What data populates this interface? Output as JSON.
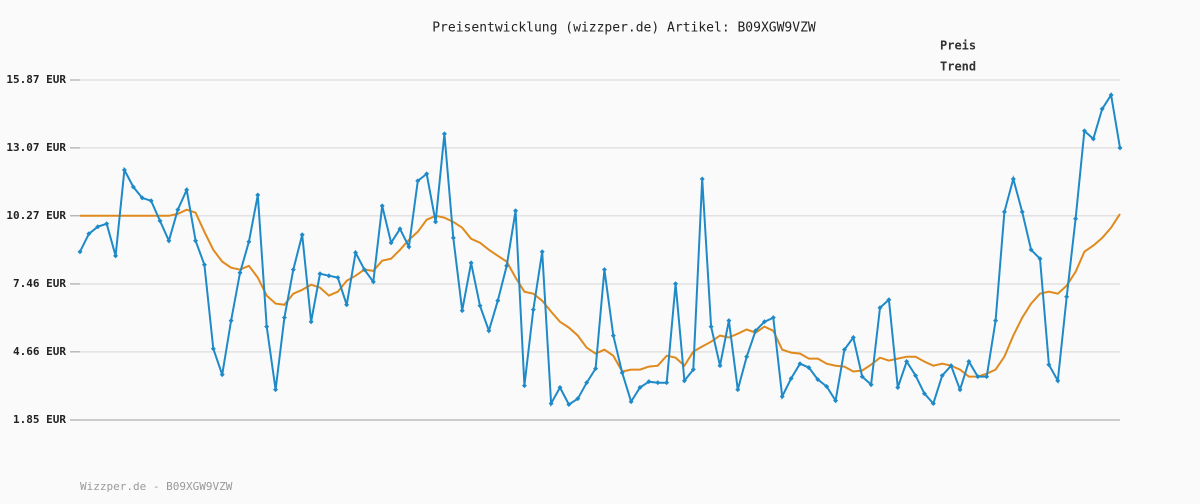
{
  "chart_data": {
    "type": "line",
    "title": "Preisentwicklung (wizzper.de) Artikel: B09XGW9VZW",
    "footer": "Wizzper.de - B09XGW9VZW",
    "ylim": [
      1.85,
      15.87
    ],
    "yticks": [
      {
        "value": 1.85,
        "label": "1.85 EUR"
      },
      {
        "value": 4.66,
        "label": "4.66 EUR"
      },
      {
        "value": 7.46,
        "label": "7.46 EUR"
      },
      {
        "value": 10.27,
        "label": "10.27 EUR"
      },
      {
        "value": 13.07,
        "label": "13.07 EUR"
      },
      {
        "value": 15.87,
        "label": "15.87 EUR"
      }
    ],
    "grid": true,
    "legend": "top-right",
    "series": [
      {
        "name": "Preis",
        "color": "#1f8ac8",
        "markers": true,
        "values": [
          8.79,
          9.53,
          9.82,
          9.94,
          8.62,
          12.16,
          11.46,
          11.01,
          10.89,
          10.06,
          9.24,
          10.52,
          11.34,
          9.24,
          8.25,
          4.79,
          3.72,
          5.95,
          7.92,
          9.2,
          11.13,
          5.7,
          3.1,
          6.07,
          8.05,
          9.49,
          5.9,
          7.88,
          7.8,
          7.72,
          6.6,
          8.75,
          8.05,
          7.55,
          10.68,
          9.16,
          9.73,
          8.99,
          11.71,
          12.0,
          10.02,
          13.65,
          9.36,
          6.36,
          8.33,
          6.56,
          5.53,
          6.77,
          8.21,
          10.48,
          3.27,
          6.4,
          8.79,
          2.53,
          3.19,
          2.49,
          2.73,
          3.39,
          3.97,
          8.05,
          5.33,
          3.8,
          2.61,
          3.19,
          3.43,
          3.39,
          3.39,
          7.47,
          3.47,
          3.93,
          11.79,
          5.7,
          4.09,
          5.95,
          3.1,
          4.46,
          5.53,
          5.9,
          6.07,
          2.82,
          3.56,
          4.17,
          4.01,
          3.52,
          3.23,
          2.65,
          4.75,
          5.25,
          3.64,
          3.31,
          6.48,
          6.81,
          3.19,
          4.26,
          3.68,
          2.94,
          2.53,
          3.68,
          4.09,
          3.1,
          4.26,
          3.64,
          3.64,
          5.95,
          10.43,
          11.79,
          10.43,
          8.87,
          8.5,
          4.13,
          3.47,
          6.93,
          10.15,
          13.77,
          13.44,
          14.68,
          15.25,
          13.07
        ]
      },
      {
        "name": "Trend",
        "color": "#e08a1e",
        "markers": false,
        "values": [
          10.27,
          10.27,
          10.27,
          10.27,
          10.27,
          10.27,
          10.27,
          10.27,
          10.27,
          10.27,
          10.27,
          10.35,
          10.52,
          10.4,
          9.61,
          8.87,
          8.38,
          8.13,
          8.05,
          8.21,
          7.72,
          6.98,
          6.65,
          6.6,
          7.06,
          7.22,
          7.43,
          7.31,
          6.98,
          7.14,
          7.59,
          7.8,
          8.05,
          8.0,
          8.42,
          8.5,
          8.87,
          9.28,
          9.61,
          10.11,
          10.27,
          10.19,
          10.02,
          9.78,
          9.32,
          9.16,
          8.87,
          8.62,
          8.38,
          7.72,
          7.14,
          7.06,
          6.77,
          6.32,
          5.9,
          5.66,
          5.33,
          4.83,
          4.59,
          4.75,
          4.5,
          3.85,
          3.93,
          3.93,
          4.05,
          4.09,
          4.5,
          4.42,
          4.09,
          4.67,
          4.88,
          5.08,
          5.33,
          5.25,
          5.41,
          5.58,
          5.45,
          5.7,
          5.53,
          4.75,
          4.63,
          4.59,
          4.38,
          4.38,
          4.17,
          4.09,
          4.05,
          3.85,
          3.89,
          4.13,
          4.42,
          4.3,
          4.38,
          4.46,
          4.46,
          4.26,
          4.09,
          4.17,
          4.09,
          3.93,
          3.64,
          3.64,
          3.76,
          3.93,
          4.46,
          5.33,
          6.07,
          6.65,
          7.06,
          7.14,
          7.06,
          7.39,
          7.96,
          8.79,
          9.04,
          9.36,
          9.78,
          10.35
        ]
      }
    ]
  }
}
